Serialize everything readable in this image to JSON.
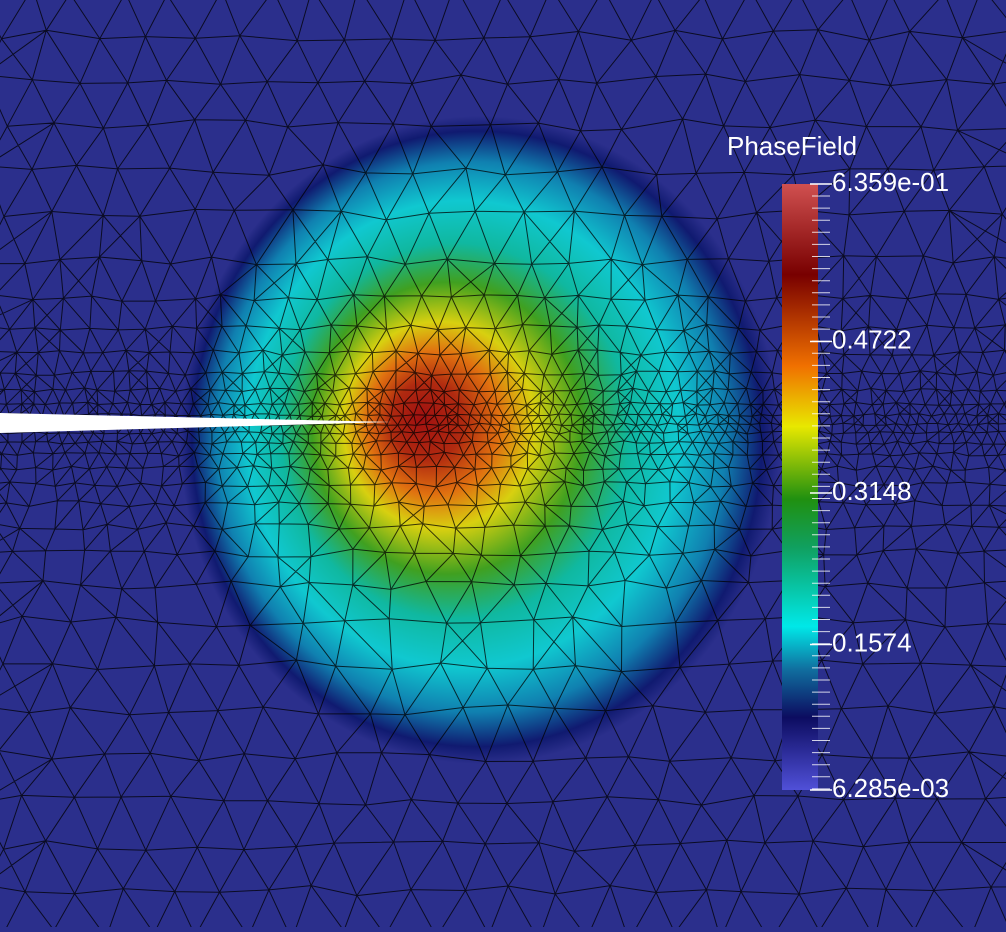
{
  "colorbar": {
    "title": "PhaseField",
    "ticks": [
      {
        "value": 0.6359,
        "label": "6.359e-01"
      },
      {
        "value": 0.4722,
        "label": "0.4722"
      },
      {
        "value": 0.3148,
        "label": "0.3148"
      },
      {
        "value": 0.1574,
        "label": "0.1574"
      },
      {
        "value": 0.006285,
        "label": "6.285e-03"
      }
    ]
  }
}
